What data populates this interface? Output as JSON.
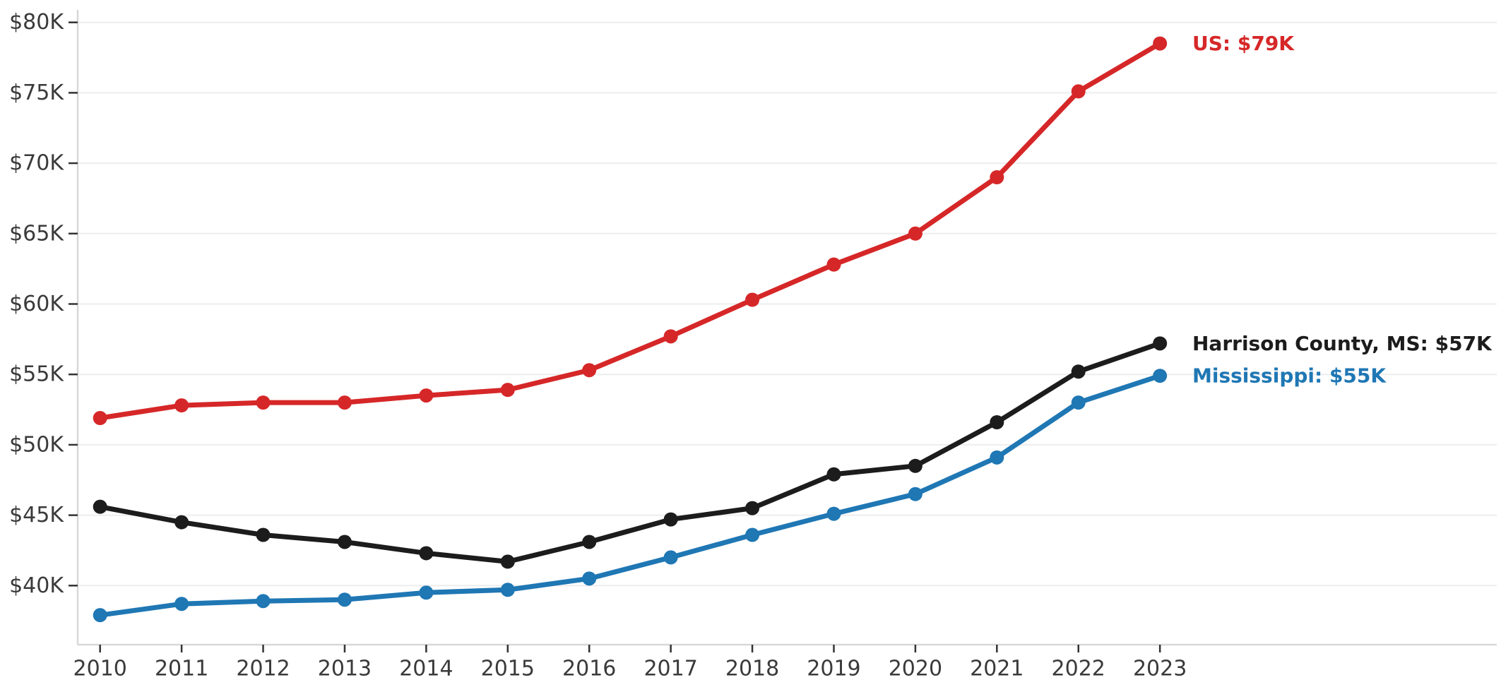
{
  "chart_data": {
    "type": "line",
    "title": "",
    "xlabel": "",
    "ylabel": "",
    "x": [
      2010,
      2011,
      2012,
      2013,
      2014,
      2015,
      2016,
      2017,
      2018,
      2019,
      2020,
      2021,
      2022,
      2023
    ],
    "x_tick_labels": [
      "2010",
      "2011",
      "2012",
      "2013",
      "2014",
      "2015",
      "2016",
      "2017",
      "2018",
      "2019",
      "2020",
      "2021",
      "2022",
      "2023"
    ],
    "y_ticks": [
      {
        "value": 40000,
        "label": "$40K"
      },
      {
        "value": 45000,
        "label": "$45K"
      },
      {
        "value": 50000,
        "label": "$50K"
      },
      {
        "value": 55000,
        "label": "$55K"
      },
      {
        "value": 60000,
        "label": "$60K"
      },
      {
        "value": 65000,
        "label": "$65K"
      },
      {
        "value": 70000,
        "label": "$70K"
      },
      {
        "value": 75000,
        "label": "$75K"
      },
      {
        "value": 80000,
        "label": "$80K"
      }
    ],
    "ylim": [
      35800,
      81200
    ],
    "grid": "horizontal",
    "legend": "inline-end-of-line-labels",
    "colors": {
      "background": "#ffffff",
      "gridline": "#ededed",
      "spine": "#d8d8d8",
      "tick_mark": "#333333",
      "tick_label": "#3a3a3a"
    },
    "series": [
      {
        "name": "US",
        "annotation": "US: $79K",
        "color": "#d62728",
        "values": [
          51900,
          52800,
          53000,
          53000,
          53500,
          53900,
          55300,
          57700,
          60300,
          62800,
          65000,
          69000,
          75100,
          78500
        ]
      },
      {
        "name": "Harrison County, MS",
        "annotation": "Harrison County, MS: $57K",
        "color": "#1c1c1c",
        "values": [
          45600,
          44500,
          43600,
          43100,
          42300,
          41700,
          43100,
          44700,
          45500,
          47900,
          48500,
          51600,
          55200,
          57200
        ]
      },
      {
        "name": "Mississippi",
        "annotation": "Mississippi: $55K",
        "color": "#1f77b4",
        "values": [
          37900,
          38700,
          38900,
          39000,
          39500,
          39700,
          40500,
          42000,
          43600,
          45100,
          46500,
          49100,
          53000,
          54900
        ]
      }
    ]
  }
}
